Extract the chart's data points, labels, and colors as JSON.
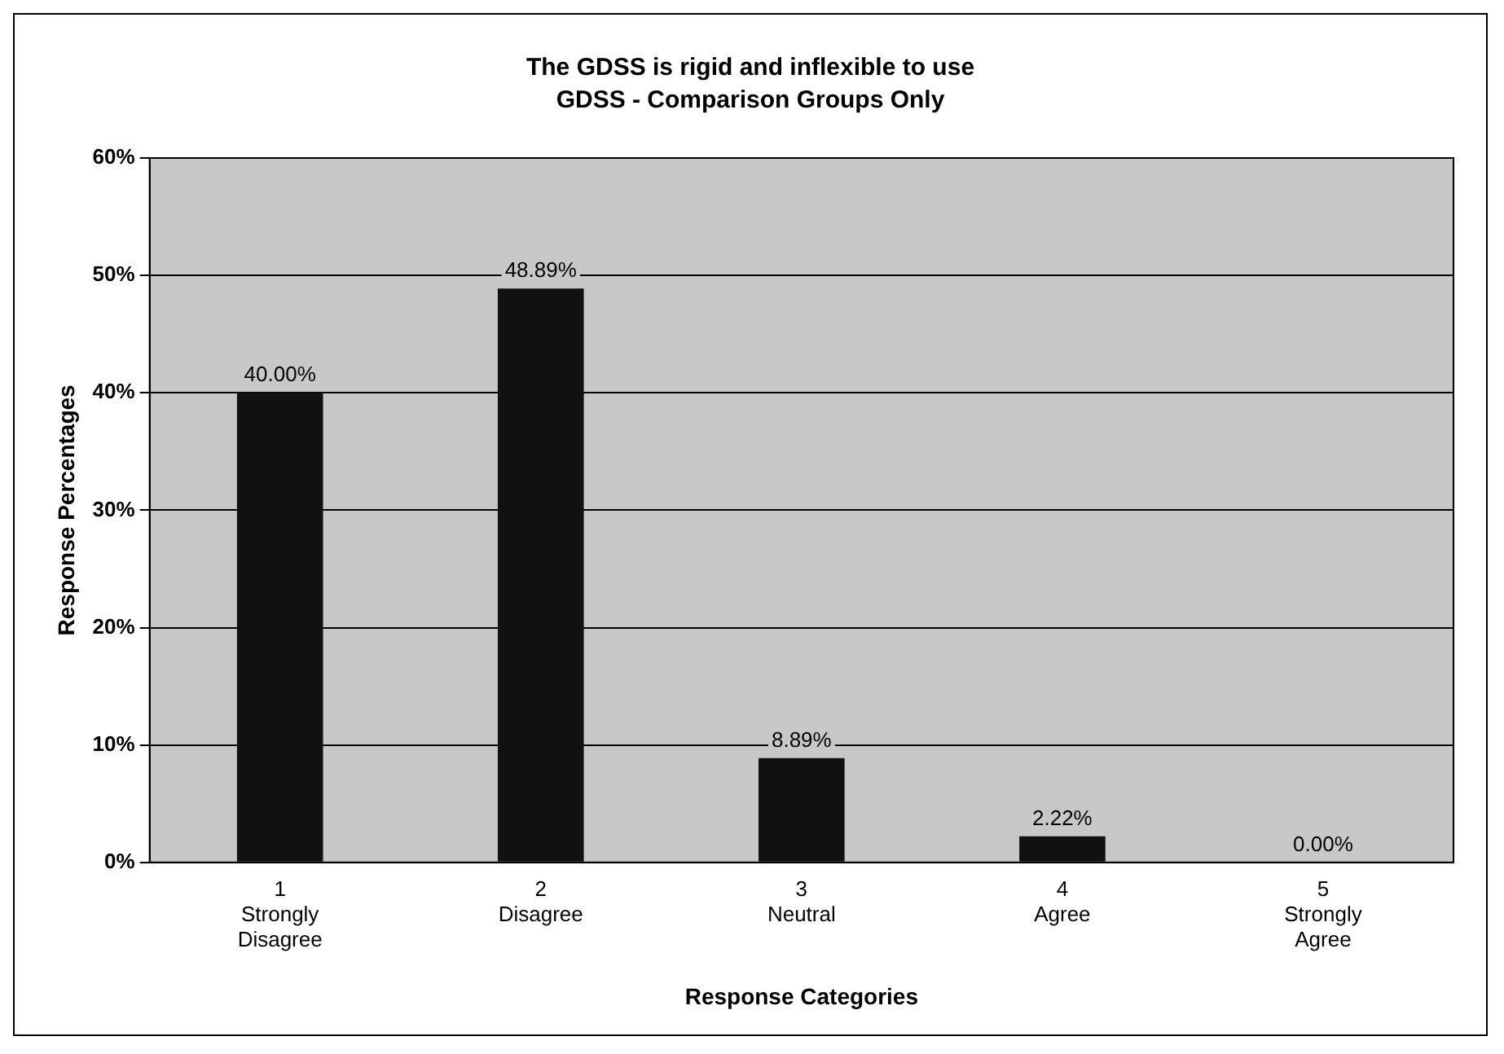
{
  "chart_data": {
    "type": "bar",
    "title": "The GDSS is rigid and inflexible to use",
    "subtitle": "GDSS - Comparison Groups Only",
    "xlabel": "Response Categories",
    "ylabel": "Response Percentages",
    "categories": [
      "1\nStrongly\nDisagree",
      "2\nDisagree",
      "3\nNeutral",
      "4\nAgree",
      "5\nStrongly\nAgree"
    ],
    "values": [
      40,
      48.89,
      8.89,
      2.22,
      0
    ],
    "color": "#111111",
    "value_labels": [
      "40.00%",
      "48.89%",
      "8.89%",
      "2.22%",
      "0.00%"
    ],
    "ylim": [
      0,
      60
    ],
    "yticks": [
      {
        "value": 0,
        "label": "0%"
      },
      {
        "value": 10,
        "label": "10%"
      },
      {
        "value": 20,
        "label": "20%"
      },
      {
        "value": 30,
        "label": "30%"
      },
      {
        "value": 40,
        "label": "40%"
      },
      {
        "value": 50,
        "label": "50%"
      },
      {
        "value": 60,
        "label": "60%"
      }
    ],
    "grid": "y",
    "legend": false
  }
}
